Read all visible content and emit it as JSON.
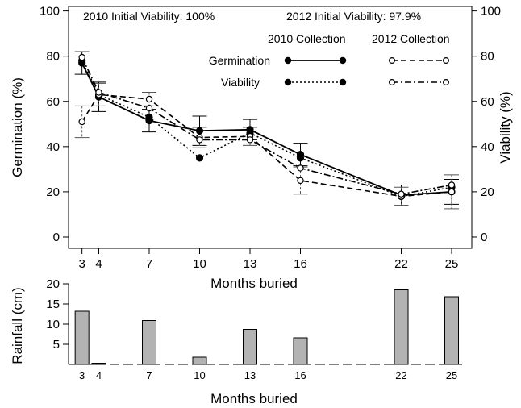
{
  "chart_data": [
    {
      "type": "line",
      "xlabel": "Months buried",
      "ylabel": "Germination (%)",
      "ylabel_right": "Viability (%)",
      "x_ticks": [
        3,
        4,
        7,
        10,
        13,
        16,
        22,
        25
      ],
      "y_ticks": [
        0,
        20,
        40,
        60,
        80,
        100
      ],
      "xlim": [
        2.2,
        26.2
      ],
      "ylim": [
        -5,
        102
      ],
      "grid": false,
      "annotations": {
        "initial_2010": "2010 Initial Viability: 100%",
        "initial_2012": "2012 Initial Viability: 97.9%"
      },
      "legend": {
        "placement": "top-right",
        "col_2010": "2010 Collection",
        "col_2012": "2012 Collection",
        "row_germination": "Germination",
        "row_viability": "Viability"
      },
      "series": [
        {
          "key": "g2010",
          "collection": "2010",
          "measure": "Germination",
          "style": "solid",
          "marker": "filled",
          "color": "#000000",
          "x": [
            3,
            4,
            7,
            10,
            13,
            16,
            22,
            25
          ],
          "y": [
            77,
            62,
            51.5,
            47,
            47.5,
            36.5,
            18.5,
            20
          ],
          "err": [
            5,
            6.5,
            5,
            6.5,
            4.5,
            5,
            4.5,
            5.5
          ]
        },
        {
          "key": "v2010",
          "collection": "2010",
          "measure": "Viability",
          "style": "dotted",
          "marker": "filled",
          "color": "#000000",
          "x": [
            3,
            4,
            7,
            10,
            13,
            16,
            22,
            25
          ],
          "y": [
            78,
            63,
            53,
            35,
            46,
            35,
            18,
            22
          ]
        },
        {
          "key": "g2012",
          "collection": "2012",
          "measure": "Germination",
          "style": "dashed",
          "marker": "open",
          "color": "#000000",
          "x": [
            3,
            4,
            7,
            10,
            13,
            16,
            22,
            25
          ],
          "y": [
            51,
            63,
            61,
            44,
            44.5,
            25,
            18,
            20
          ],
          "err": [
            7,
            5,
            3,
            4.5,
            4,
            6,
            4,
            7.5
          ]
        },
        {
          "key": "v2012",
          "collection": "2012",
          "measure": "Viability",
          "style": "dashdot",
          "marker": "open",
          "color": "#000000",
          "x": [
            3,
            4,
            7,
            10,
            13,
            16,
            22,
            25
          ],
          "y": [
            79.5,
            64,
            57,
            43,
            43,
            30.5,
            19,
            23
          ]
        }
      ]
    },
    {
      "type": "bar",
      "xlabel": "Months buried",
      "ylabel": "Rainfall (cm)",
      "x_ticks": [
        3,
        4,
        7,
        10,
        13,
        16,
        22,
        25
      ],
      "y_ticks": [
        5,
        10,
        15,
        20
      ],
      "ylim": [
        0,
        20
      ],
      "bar_color": "#b3b3b3",
      "bars": [
        {
          "x": 3,
          "value": 13.2
        },
        {
          "x": 4,
          "value": 0.3
        },
        {
          "x": 7,
          "value": 10.9
        },
        {
          "x": 10,
          "value": 1.8
        },
        {
          "x": 13,
          "value": 8.7
        },
        {
          "x": 16,
          "value": 6.6
        },
        {
          "x": 22,
          "value": 18.5
        },
        {
          "x": 25,
          "value": 16.8
        }
      ]
    }
  ]
}
